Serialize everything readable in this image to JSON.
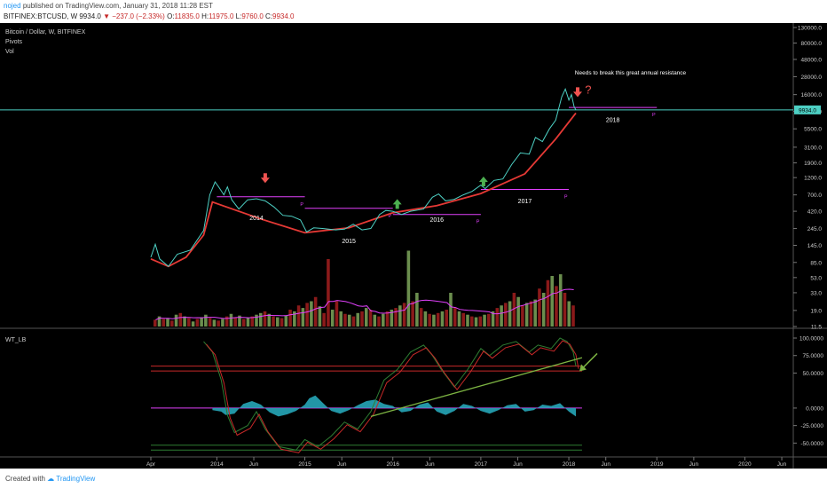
{
  "header": {
    "user": "nojed",
    "publish_text": "published on TradingView.com, January 31, 2018 11:28 EST",
    "symbol": "BITFINEX:BTCUSD, W",
    "last": "9934.0",
    "change": "−237.0 (−2.33%)",
    "o_label": "O:",
    "o": "11835.0",
    "h_label": "H:",
    "h": "11975.0",
    "l_label": "L:",
    "l": "9760.0",
    "c_label": "C:",
    "c": "9934.0"
  },
  "footer": {
    "created_text": "Created with",
    "brand": "TradingView"
  },
  "colors": {
    "background": "#000000",
    "price_line": "#4dd0c4",
    "trend_line": "#e53935",
    "pivot_line": "#e040fb",
    "up_arrow": "#4caf50",
    "down_arrow": "#ef5350",
    "vol_up": "#6b8e4e",
    "vol_down": "#8b1a1a",
    "osc_fill": "#26a6b8",
    "wave_1": "#2e7d32",
    "wave_2": "#c62828"
  },
  "chart_data": [
    {
      "type": "line",
      "title": "Bitcoin / Dollar, W, BITFINEX",
      "indicators": [
        "Pivots",
        "Vol"
      ],
      "scale": "log",
      "x_ticks": [
        "Apr",
        "2014",
        "Jun",
        "2015",
        "Jun",
        "2016",
        "Jun",
        "2017",
        "Jun",
        "2018",
        "Jun",
        "2019",
        "Jun",
        "2020",
        "Jun"
      ],
      "y_ticks": [
        130000.0,
        80000.0,
        48000.0,
        28000.0,
        16000.0,
        9500.0,
        5500.0,
        3100.0,
        1900.0,
        1200.0,
        700.0,
        420.0,
        245.0,
        145.0,
        85.0,
        53.0,
        33.0,
        19.0,
        11.5
      ],
      "y_tick_labels": [
        "130000.0",
        "80000.0",
        "48000.0",
        "28000.0",
        "16000.0",
        "9500.0",
        "5500.0",
        "3100.0",
        "1900.0",
        "1200.0",
        "700.0",
        "420.0",
        "245.0",
        "145.0",
        "85.0",
        "53.0",
        "33.0",
        "19.0",
        "11.5"
      ],
      "last_price": 9934.0,
      "last_price_label": "9934.0",
      "price_series": [
        [
          2013.25,
          100
        ],
        [
          2013.3,
          150
        ],
        [
          2013.35,
          95
        ],
        [
          2013.45,
          75
        ],
        [
          2013.55,
          110
        ],
        [
          2013.7,
          125
        ],
        [
          2013.85,
          230
        ],
        [
          2013.92,
          700
        ],
        [
          2013.98,
          1050
        ],
        [
          2014.02,
          900
        ],
        [
          2014.08,
          700
        ],
        [
          2014.12,
          900
        ],
        [
          2014.17,
          600
        ],
        [
          2014.25,
          450
        ],
        [
          2014.35,
          600
        ],
        [
          2014.45,
          620
        ],
        [
          2014.55,
          580
        ],
        [
          2014.65,
          480
        ],
        [
          2014.75,
          370
        ],
        [
          2014.85,
          360
        ],
        [
          2014.95,
          320
        ],
        [
          2015.02,
          220
        ],
        [
          2015.1,
          250
        ],
        [
          2015.2,
          245
        ],
        [
          2015.35,
          235
        ],
        [
          2015.45,
          240
        ],
        [
          2015.55,
          280
        ],
        [
          2015.65,
          235
        ],
        [
          2015.75,
          245
        ],
        [
          2015.85,
          380
        ],
        [
          2015.92,
          430
        ],
        [
          2016.0,
          420
        ],
        [
          2016.1,
          380
        ],
        [
          2016.2,
          420
        ],
        [
          2016.35,
          450
        ],
        [
          2016.45,
          650
        ],
        [
          2016.52,
          720
        ],
        [
          2016.6,
          580
        ],
        [
          2016.7,
          610
        ],
        [
          2016.8,
          700
        ],
        [
          2016.9,
          780
        ],
        [
          2017.0,
          950
        ],
        [
          2017.05,
          850
        ],
        [
          2017.15,
          1100
        ],
        [
          2017.25,
          1150
        ],
        [
          2017.35,
          1800
        ],
        [
          2017.45,
          2600
        ],
        [
          2017.55,
          2500
        ],
        [
          2017.62,
          4200
        ],
        [
          2017.7,
          3700
        ],
        [
          2017.78,
          5500
        ],
        [
          2017.85,
          7200
        ],
        [
          2017.92,
          15000
        ],
        [
          2017.96,
          19000
        ],
        [
          2018.0,
          13500
        ],
        [
          2018.03,
          16000
        ],
        [
          2018.06,
          11000
        ],
        [
          2018.08,
          9934
        ]
      ],
      "trend_line": [
        [
          2013.25,
          95
        ],
        [
          2013.45,
          75
        ],
        [
          2013.65,
          100
        ],
        [
          2013.85,
          200
        ],
        [
          2013.95,
          560
        ],
        [
          2014.5,
          330
        ],
        [
          2015.0,
          215
        ],
        [
          2015.5,
          250
        ],
        [
          2016.0,
          400
        ],
        [
          2016.5,
          500
        ],
        [
          2017.0,
          730
        ],
        [
          2017.5,
          1350
        ],
        [
          2017.85,
          4000
        ],
        [
          2018.08,
          9000
        ]
      ],
      "pivot_levels": [
        {
          "label": "P",
          "from": 2014.0,
          "to": 2015.0,
          "value": 660
        },
        {
          "label": "P",
          "from": 2015.0,
          "to": 2016.0,
          "value": 460
        },
        {
          "label": "P",
          "from": 2016.0,
          "to": 2017.0,
          "value": 380
        },
        {
          "label": "P",
          "from": 2017.0,
          "to": 2018.0,
          "value": 830
        },
        {
          "label": "P",
          "from": 2018.0,
          "to": 2019.0,
          "value": 10700
        }
      ],
      "resistance_line": 9934,
      "year_labels": [
        {
          "text": "2014",
          "x": 2014.45,
          "y": 320
        },
        {
          "text": "2015",
          "x": 2015.5,
          "y": 155
        },
        {
          "text": "2016",
          "x": 2016.5,
          "y": 300
        },
        {
          "text": "2017",
          "x": 2017.5,
          "y": 540
        },
        {
          "text": "2018",
          "x": 2018.5,
          "y": 6800
        }
      ],
      "arrows": [
        {
          "dir": "down",
          "x": 2014.55,
          "y": 1200
        },
        {
          "dir": "up",
          "x": 2016.05,
          "y": 520
        },
        {
          "dir": "up",
          "x": 2017.03,
          "y": 1050
        },
        {
          "dir": "down",
          "x": 2018.1,
          "y": 17500
        }
      ],
      "annotations": [
        {
          "text": "Needs to break this great annual resistance",
          "x": 2018.7,
          "y": 30000
        },
        {
          "text": "?",
          "x": 2018.22,
          "y": 16500
        }
      ],
      "volume": [
        [
          8,
          0
        ],
        [
          12,
          1
        ],
        [
          9,
          0
        ],
        [
          10,
          1
        ],
        [
          7,
          0
        ],
        [
          14,
          1
        ],
        [
          16,
          0
        ],
        [
          12,
          1
        ],
        [
          10,
          0
        ],
        [
          6,
          1
        ],
        [
          9,
          0
        ],
        [
          11,
          1
        ],
        [
          14,
          1
        ],
        [
          10,
          0
        ],
        [
          8,
          1
        ],
        [
          7,
          0
        ],
        [
          9,
          1
        ],
        [
          12,
          0
        ],
        [
          15,
          1
        ],
        [
          11,
          0
        ],
        [
          13,
          1
        ],
        [
          9,
          0
        ],
        [
          10,
          1
        ],
        [
          12,
          0
        ],
        [
          14,
          1
        ],
        [
          16,
          1
        ],
        [
          18,
          0
        ],
        [
          15,
          1
        ],
        [
          12,
          0
        ],
        [
          11,
          1
        ],
        [
          10,
          0
        ],
        [
          13,
          1
        ],
        [
          20,
          0
        ],
        [
          18,
          1
        ],
        [
          25,
          0
        ],
        [
          22,
          1
        ],
        [
          28,
          0
        ],
        [
          30,
          1
        ],
        [
          35,
          0
        ],
        [
          24,
          1
        ],
        [
          16,
          0
        ],
        [
          80,
          0
        ],
        [
          20,
          1
        ],
        [
          30,
          0
        ],
        [
          18,
          1
        ],
        [
          15,
          0
        ],
        [
          14,
          1
        ],
        [
          12,
          0
        ],
        [
          16,
          1
        ],
        [
          18,
          0
        ],
        [
          22,
          1
        ],
        [
          20,
          0
        ],
        [
          14,
          1
        ],
        [
          12,
          0
        ],
        [
          15,
          1
        ],
        [
          18,
          0
        ],
        [
          20,
          1
        ],
        [
          22,
          0
        ],
        [
          25,
          1
        ],
        [
          28,
          0
        ],
        [
          90,
          1
        ],
        [
          30,
          0
        ],
        [
          40,
          1
        ],
        [
          22,
          0
        ],
        [
          18,
          1
        ],
        [
          15,
          0
        ],
        [
          14,
          1
        ],
        [
          16,
          0
        ],
        [
          18,
          1
        ],
        [
          20,
          0
        ],
        [
          40,
          1
        ],
        [
          22,
          0
        ],
        [
          18,
          1
        ],
        [
          16,
          0
        ],
        [
          14,
          1
        ],
        [
          12,
          0
        ],
        [
          11,
          1
        ],
        [
          12,
          0
        ],
        [
          14,
          1
        ],
        [
          15,
          0
        ],
        [
          18,
          1
        ],
        [
          22,
          0
        ],
        [
          25,
          1
        ],
        [
          28,
          0
        ],
        [
          30,
          1
        ],
        [
          40,
          0
        ],
        [
          35,
          1
        ],
        [
          25,
          0
        ],
        [
          28,
          1
        ],
        [
          30,
          0
        ],
        [
          32,
          1
        ],
        [
          45,
          0
        ],
        [
          40,
          1
        ],
        [
          55,
          0
        ],
        [
          60,
          1
        ],
        [
          48,
          0
        ],
        [
          62,
          1
        ],
        [
          40,
          0
        ],
        [
          30,
          1
        ],
        [
          25,
          0
        ]
      ]
    },
    {
      "type": "line",
      "title": "WT_LB",
      "y_ticks": [
        100.0,
        75.0,
        50.0,
        0.0,
        -25.0,
        -50.0
      ],
      "y_tick_labels": [
        "100.0000",
        "75.0000",
        "50.0000",
        "0.0000",
        "-25.0000",
        "-50.0000"
      ],
      "levels": [
        {
          "value": 60,
          "color": "#c62828"
        },
        {
          "value": 53,
          "color": "#c62828"
        },
        {
          "value": 0,
          "color": "#e040fb"
        },
        {
          "value": -53,
          "color": "#2e7d32"
        },
        {
          "value": -60,
          "color": "#2e7d32"
        }
      ],
      "wave": [
        [
          2013.85,
          95
        ],
        [
          2013.95,
          80
        ],
        [
          2014.05,
          40
        ],
        [
          2014.12,
          -10
        ],
        [
          2014.2,
          -35
        ],
        [
          2014.35,
          -25
        ],
        [
          2014.45,
          -5
        ],
        [
          2014.55,
          -30
        ],
        [
          2014.7,
          -55
        ],
        [
          2014.9,
          -60
        ],
        [
          2015.0,
          -45
        ],
        [
          2015.15,
          -55
        ],
        [
          2015.3,
          -40
        ],
        [
          2015.45,
          -20
        ],
        [
          2015.6,
          -30
        ],
        [
          2015.75,
          -5
        ],
        [
          2015.9,
          40
        ],
        [
          2016.05,
          55
        ],
        [
          2016.2,
          80
        ],
        [
          2016.35,
          90
        ],
        [
          2016.45,
          75
        ],
        [
          2016.55,
          55
        ],
        [
          2016.7,
          30
        ],
        [
          2016.85,
          55
        ],
        [
          2017.0,
          85
        ],
        [
          2017.1,
          75
        ],
        [
          2017.25,
          90
        ],
        [
          2017.4,
          95
        ],
        [
          2017.55,
          80
        ],
        [
          2017.65,
          90
        ],
        [
          2017.8,
          85
        ],
        [
          2017.9,
          100
        ],
        [
          2017.98,
          95
        ],
        [
          2018.05,
          80
        ],
        [
          2018.08,
          60
        ]
      ],
      "histogram": [
        [
          2013.95,
          -3
        ],
        [
          2014.05,
          -5
        ],
        [
          2014.1,
          -10
        ],
        [
          2014.2,
          -8
        ],
        [
          2014.3,
          6
        ],
        [
          2014.4,
          10
        ],
        [
          2014.5,
          5
        ],
        [
          2014.6,
          -6
        ],
        [
          2014.7,
          -12
        ],
        [
          2014.8,
          -9
        ],
        [
          2014.9,
          -4
        ],
        [
          2015.0,
          5
        ],
        [
          2015.05,
          14
        ],
        [
          2015.12,
          18
        ],
        [
          2015.2,
          8
        ],
        [
          2015.3,
          -4
        ],
        [
          2015.4,
          -8
        ],
        [
          2015.5,
          -3
        ],
        [
          2015.6,
          4
        ],
        [
          2015.7,
          10
        ],
        [
          2015.8,
          12
        ],
        [
          2015.9,
          6
        ],
        [
          2016.0,
          3
        ],
        [
          2016.1,
          -6
        ],
        [
          2016.2,
          -4
        ],
        [
          2016.3,
          5
        ],
        [
          2016.4,
          8
        ],
        [
          2016.5,
          -5
        ],
        [
          2016.6,
          -10
        ],
        [
          2016.7,
          -4
        ],
        [
          2016.8,
          6
        ],
        [
          2016.9,
          3
        ],
        [
          2017.0,
          -4
        ],
        [
          2017.1,
          -8
        ],
        [
          2017.2,
          -3
        ],
        [
          2017.3,
          4
        ],
        [
          2017.4,
          6
        ],
        [
          2017.5,
          -5
        ],
        [
          2017.6,
          -3
        ],
        [
          2017.7,
          5
        ],
        [
          2017.8,
          3
        ],
        [
          2017.9,
          7
        ],
        [
          2018.0,
          -5
        ],
        [
          2018.08,
          -12
        ]
      ],
      "green_trend": [
        [
          2015.75,
          -12
        ],
        [
          2018.15,
          72
        ]
      ]
    }
  ]
}
